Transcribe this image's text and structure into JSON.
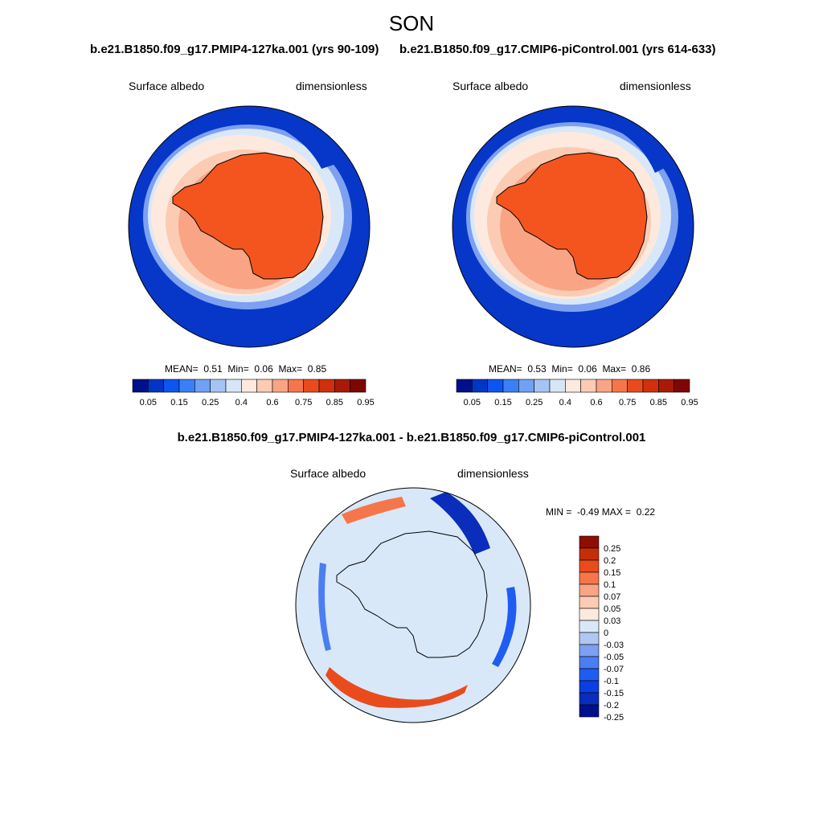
{
  "season": "SON",
  "colors": {
    "albedo_scale": [
      "#000f8c",
      "#0036c6",
      "#0c55f0",
      "#3a7ff5",
      "#6fa1f4",
      "#a6c4f3",
      "#d7e6f7",
      "#fde9de",
      "#fbcbb4",
      "#f9a485",
      "#f6764c",
      "#ea4b1d",
      "#d0300b",
      "#a91a06",
      "#7e0704"
    ],
    "diff_scale": [
      "#000f8c",
      "#0a2dbb",
      "#0c3fe3",
      "#1f5cf2",
      "#4a7ef2",
      "#7ea0f1",
      "#b1c7f3",
      "#d9e8f8",
      "#fde9de",
      "#fbcbb4",
      "#f9a485",
      "#f6764c",
      "#ea4b1d",
      "#c52e08",
      "#8f0e03"
    ],
    "land_fill": "#f4551f",
    "ocean_fill": "#0637c9"
  },
  "panels": [
    {
      "title": "b.e21.B1850.f09_g17.PMIP4-127ka.001 (yrs 90-109)",
      "left_label": "Surface albedo",
      "right_label": "dimensionless",
      "mean_label": "MEAN=",
      "mean": "0.51",
      "min_label": "Min=",
      "min": "0.06",
      "max_label": "Max=",
      "max": "0.85"
    },
    {
      "title": "b.e21.B1850.f09_g17.CMIP6-piControl.001 (yrs 614-633)",
      "left_label": "Surface albedo",
      "right_label": "dimensionless",
      "mean_label": "MEAN=",
      "mean": "0.53",
      "min_label": "Min=",
      "min": "0.06",
      "max_label": "Max=",
      "max": "0.86"
    }
  ],
  "colorbar_labels": [
    "0.05",
    "0.15",
    "0.25",
    "0.4",
    "0.6",
    "0.75",
    "0.85",
    "0.95"
  ],
  "diff": {
    "title": "b.e21.B1850.f09_g17.PMIP4-127ka.001 - b.e21.B1850.f09_g17.CMIP6-piControl.001",
    "left_label": "Surface albedo",
    "right_label": "dimensionless",
    "min_label": "MIN =",
    "min": "-0.49",
    "max_label": "MAX =",
    "max": "0.22",
    "colorbar_labels": [
      "0.25",
      "0.2",
      "0.15",
      "0.1",
      "0.07",
      "0.05",
      "0.03",
      "0",
      "-0.03",
      "-0.05",
      "-0.07",
      "-0.1",
      "-0.15",
      "-0.2",
      "-0.25"
    ]
  }
}
